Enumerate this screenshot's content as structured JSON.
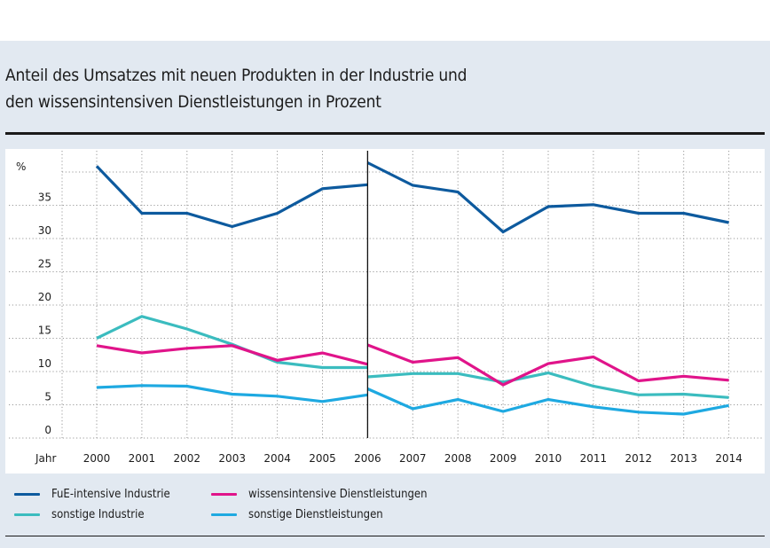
{
  "title": {
    "line1": "Anteil des Umsatzes mit neuen Produkten in der Industrie und",
    "line2": "den wissensintensiven Dienstleistungen in Prozent"
  },
  "colors": {
    "background": "#e2e9f1",
    "panel": "#ffffff",
    "fue": "#0d5a9e",
    "sonstige_industrie": "#3bbcbf",
    "wissensintensive": "#e0148a",
    "sonstige_dienst": "#1ea9e1"
  },
  "chart_data": {
    "type": "line",
    "title": "Anteil des Umsatzes mit neuen Produkten in der Industrie und den wissensintensiven Dienstleistungen in Prozent",
    "xlabel": "Jahr",
    "ylabel": "%",
    "x": [
      2000,
      2001,
      2002,
      2003,
      2004,
      2005,
      2006,
      2007,
      2008,
      2009,
      2010,
      2011,
      2012,
      2013,
      2014
    ],
    "x_tick_labels": [
      "2000",
      "2001",
      "2002",
      "2003",
      "2004",
      "2005",
      "2006",
      "2007",
      "2008",
      "2009",
      "2010",
      "2011",
      "2012",
      "2013",
      "2014"
    ],
    "y_tick_labels": [
      "0",
      "5",
      "10",
      "15",
      "20",
      "25",
      "30",
      "35"
    ],
    "y_ticks": [
      0,
      5,
      10,
      15,
      20,
      25,
      30,
      35
    ],
    "ylim": [
      0,
      40
    ],
    "grid": true,
    "grid_style": "dotted",
    "break_year": 2006,
    "break_note": "series break (vertical line) at 2006; values before and after the break shown as separate segments",
    "legend_position": "bottom",
    "series": [
      {
        "name": "FuE-intensive Industrie",
        "color_key": "fue",
        "segments": [
          {
            "x": [
              2000,
              2001,
              2002,
              2003,
              2004,
              2005,
              2006
            ],
            "values": [
              40.9,
              33.8,
              33.8,
              31.8,
              33.8,
              37.5,
              38.1
            ]
          },
          {
            "x": [
              2006,
              2007,
              2008,
              2009,
              2010,
              2011,
              2012,
              2013,
              2014
            ],
            "values": [
              41.4,
              38.0,
              37.0,
              31.0,
              34.8,
              35.1,
              33.8,
              33.8,
              32.4
            ]
          }
        ]
      },
      {
        "name": "sonstige Industrie",
        "color_key": "sonstige_industrie",
        "segments": [
          {
            "x": [
              2000,
              2001,
              2002,
              2003,
              2004,
              2005,
              2006
            ],
            "values": [
              15.0,
              18.3,
              16.4,
              14.1,
              11.4,
              10.6,
              10.6
            ]
          },
          {
            "x": [
              2006,
              2007,
              2008,
              2009,
              2010,
              2011,
              2012,
              2013,
              2014
            ],
            "values": [
              9.2,
              9.7,
              9.7,
              8.4,
              9.8,
              7.8,
              6.5,
              6.6,
              6.1
            ]
          }
        ]
      },
      {
        "name": "wissensintensive Dienstleistungen",
        "color_key": "wissensintensive",
        "segments": [
          {
            "x": [
              2000,
              2001,
              2002,
              2003,
              2004,
              2005,
              2006
            ],
            "values": [
              13.9,
              12.8,
              13.5,
              13.9,
              11.7,
              12.8,
              11.1
            ]
          },
          {
            "x": [
              2006,
              2007,
              2008,
              2009,
              2010,
              2011,
              2012,
              2013,
              2014
            ],
            "values": [
              14.0,
              11.4,
              12.1,
              8.0,
              11.2,
              12.2,
              8.6,
              9.3,
              8.7
            ]
          }
        ]
      },
      {
        "name": "sonstige Dienstleistungen",
        "color_key": "sonstige_dienst",
        "segments": [
          {
            "x": [
              2000,
              2001,
              2002,
              2003,
              2004,
              2005,
              2006
            ],
            "values": [
              7.6,
              7.9,
              7.8,
              6.6,
              6.3,
              5.5,
              6.5
            ]
          },
          {
            "x": [
              2006,
              2007,
              2008,
              2009,
              2010,
              2011,
              2012,
              2013,
              2014
            ],
            "values": [
              7.4,
              4.4,
              5.8,
              4.0,
              5.8,
              4.7,
              3.9,
              3.6,
              4.9
            ]
          }
        ]
      }
    ]
  },
  "legend": [
    {
      "label": "FuE-intensive Industrie",
      "color_key": "fue"
    },
    {
      "label": "wissensintensive Dienstleistungen",
      "color_key": "wissensintensive"
    },
    {
      "label": "sonstige Industrie",
      "color_key": "sonstige_industrie"
    },
    {
      "label": "sonstige Dienstleistungen",
      "color_key": "sonstige_dienst"
    }
  ]
}
